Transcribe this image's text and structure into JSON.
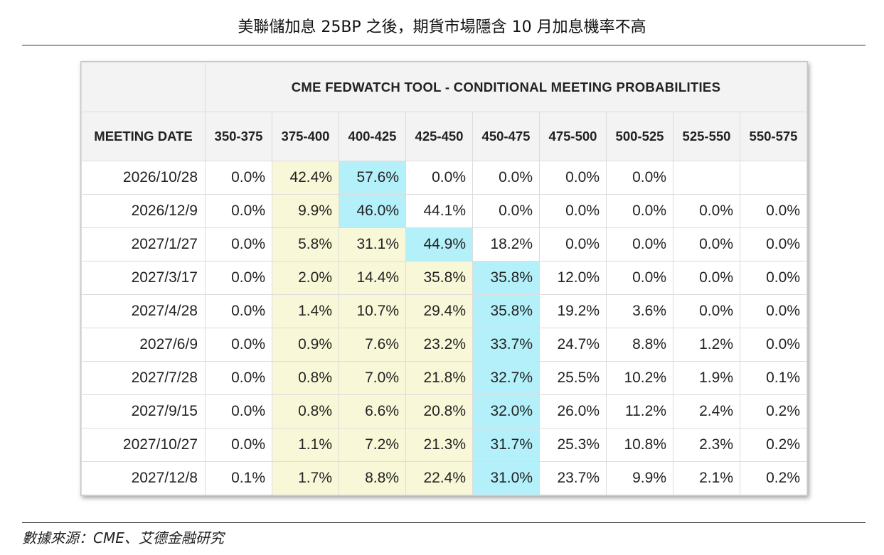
{
  "page": {
    "title": "美聯儲加息 25BP 之後，期貨市場隱含 10 月加息機率不高",
    "source": "數據來源：CME、艾德金融研究"
  },
  "chart_data": {
    "type": "table",
    "title": "CME FEDWATCH TOOL - CONDITIONAL MEETING PROBABILITIES",
    "date_header": "MEETING DATE",
    "columns": [
      "350-375",
      "375-400",
      "400-425",
      "425-450",
      "450-475",
      "475-500",
      "500-525",
      "525-550",
      "550-575"
    ],
    "rows": [
      {
        "date": "2026/10/28",
        "values": [
          "0.0%",
          "42.4%",
          "57.6%",
          "0.0%",
          "0.0%",
          "0.0%",
          "0.0%",
          "",
          ""
        ],
        "highlight": [
          null,
          "yellow",
          "cyan",
          null,
          null,
          null,
          null,
          null,
          null
        ]
      },
      {
        "date": "2026/12/9",
        "values": [
          "0.0%",
          "9.9%",
          "46.0%",
          "44.1%",
          "0.0%",
          "0.0%",
          "0.0%",
          "0.0%",
          "0.0%"
        ],
        "highlight": [
          null,
          "yellow",
          "cyan",
          null,
          null,
          null,
          null,
          null,
          null
        ]
      },
      {
        "date": "2027/1/27",
        "values": [
          "0.0%",
          "5.8%",
          "31.1%",
          "44.9%",
          "18.2%",
          "0.0%",
          "0.0%",
          "0.0%",
          "0.0%"
        ],
        "highlight": [
          null,
          "yellow",
          "yellow",
          "cyan",
          null,
          null,
          null,
          null,
          null
        ]
      },
      {
        "date": "2027/3/17",
        "values": [
          "0.0%",
          "2.0%",
          "14.4%",
          "35.8%",
          "35.8%",
          "12.0%",
          "0.0%",
          "0.0%",
          "0.0%"
        ],
        "highlight": [
          null,
          "yellow",
          "yellow",
          "yellow",
          "cyan",
          null,
          null,
          null,
          null
        ]
      },
      {
        "date": "2027/4/28",
        "values": [
          "0.0%",
          "1.4%",
          "10.7%",
          "29.4%",
          "35.8%",
          "19.2%",
          "3.6%",
          "0.0%",
          "0.0%"
        ],
        "highlight": [
          null,
          "yellow",
          "yellow",
          "yellow",
          "cyan",
          null,
          null,
          null,
          null
        ]
      },
      {
        "date": "2027/6/9",
        "values": [
          "0.0%",
          "0.9%",
          "7.6%",
          "23.2%",
          "33.7%",
          "24.7%",
          "8.8%",
          "1.2%",
          "0.0%"
        ],
        "highlight": [
          null,
          "yellow",
          "yellow",
          "yellow",
          "cyan",
          null,
          null,
          null,
          null
        ]
      },
      {
        "date": "2027/7/28",
        "values": [
          "0.0%",
          "0.8%",
          "7.0%",
          "21.8%",
          "32.7%",
          "25.5%",
          "10.2%",
          "1.9%",
          "0.1%"
        ],
        "highlight": [
          null,
          "yellow",
          "yellow",
          "yellow",
          "cyan",
          null,
          null,
          null,
          null
        ]
      },
      {
        "date": "2027/9/15",
        "values": [
          "0.0%",
          "0.8%",
          "6.6%",
          "20.8%",
          "32.0%",
          "26.0%",
          "11.2%",
          "2.4%",
          "0.2%"
        ],
        "highlight": [
          null,
          "yellow",
          "yellow",
          "yellow",
          "cyan",
          null,
          null,
          null,
          null
        ]
      },
      {
        "date": "2027/10/27",
        "values": [
          "0.0%",
          "1.1%",
          "7.2%",
          "21.3%",
          "31.7%",
          "25.3%",
          "10.8%",
          "2.3%",
          "0.2%"
        ],
        "highlight": [
          null,
          "yellow",
          "yellow",
          "yellow",
          "cyan",
          null,
          null,
          null,
          null
        ]
      },
      {
        "date": "2027/12/8",
        "values": [
          "0.1%",
          "1.7%",
          "8.8%",
          "22.4%",
          "31.0%",
          "23.7%",
          "9.9%",
          "2.1%",
          "0.2%"
        ],
        "highlight": [
          null,
          "yellow",
          "yellow",
          "yellow",
          "cyan",
          null,
          null,
          null,
          null
        ]
      }
    ],
    "colors": {
      "yellow": "#f8f8d8",
      "cyan": "#b3f0fa",
      "header_bg": "#f3f3f3"
    }
  }
}
